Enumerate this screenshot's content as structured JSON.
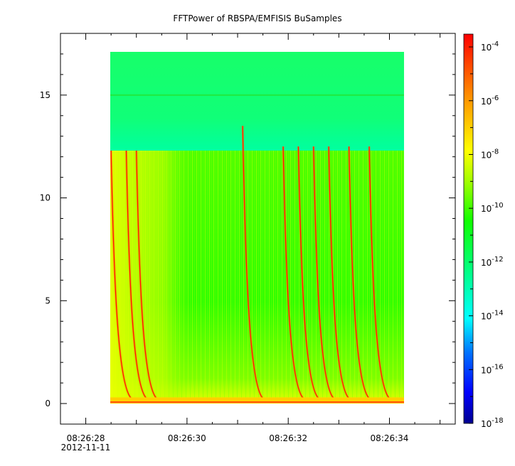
{
  "chart_data": {
    "type": "heatmap",
    "title": "FFTPower of RBSPA/EMFISIS  BuSamples",
    "xlabel": "",
    "ylabel": "",
    "x_start": "08:26:28.4",
    "x_end": "08:26:34.3",
    "xlim": [
      "08:26:27.5",
      "08:26:35.3"
    ],
    "x_ticks": [
      {
        "time": "08:26:28",
        "label": "08:26:28",
        "sublabel": "2012-11-11"
      },
      {
        "time": "08:26:30",
        "label": "08:26:30"
      },
      {
        "time": "08:26:32",
        "label": "08:26:32"
      },
      {
        "time": "08:26:34",
        "label": "08:26:34"
      }
    ],
    "ylim": [
      -1,
      18
    ],
    "y_ticks": [
      0,
      5,
      10,
      15
    ],
    "data_y_range": [
      0,
      17.5
    ],
    "colorbar": {
      "scale": "log",
      "range": [
        "1e-18",
        "3e-4"
      ],
      "ticks": [
        {
          "base": "10",
          "exp": "-4"
        },
        {
          "base": "10",
          "exp": "-6"
        },
        {
          "base": "10",
          "exp": "-8"
        },
        {
          "base": "10",
          "exp": "-10"
        },
        {
          "base": "10",
          "exp": "-12"
        },
        {
          "base": "10",
          "exp": "-14"
        },
        {
          "base": "10",
          "exp": "-16"
        },
        {
          "base": "10",
          "exp": "-18"
        }
      ],
      "colormap": [
        "#00008f",
        "#0000ff",
        "#0080ff",
        "#00ffff",
        "#00ff80",
        "#00ff00",
        "#80ff00",
        "#ffff00",
        "#ff8000",
        "#ff0000"
      ]
    },
    "features": {
      "background_band_upper": {
        "freq_range": [
          12.3,
          17.5
        ],
        "color": "#00ff70"
      },
      "background_band_lower": {
        "freq_range": [
          0,
          12.3
        ],
        "color": "#40ff00"
      },
      "constant_line_freq": 15,
      "whistler_start_times": [
        "08:26:28.5",
        "08:26:28.8",
        "08:26:29.0",
        "08:26:31.1",
        "08:26:31.9",
        "08:26:32.2",
        "08:26:32.5",
        "08:26:32.8",
        "08:26:33.2",
        "08:26:33.6"
      ]
    },
    "grid": false
  }
}
